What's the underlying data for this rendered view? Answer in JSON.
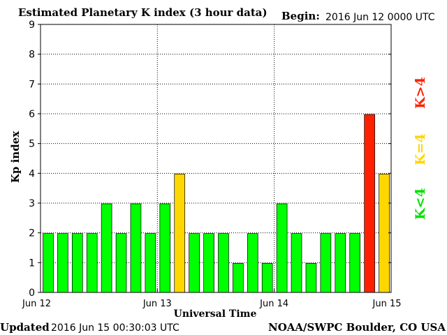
{
  "header": {
    "title": "Estimated Planetary K index (3 hour data)",
    "begin_label": "Begin:",
    "begin_value": "2016 Jun 12 0000 UTC"
  },
  "footer": {
    "updated_label": "Updated",
    "updated_value": "2016 Jun 15 00:30:03 UTC",
    "source": "NOAA/SWPC Boulder, CO USA"
  },
  "legend": {
    "high": "K>4",
    "equal": "K=4",
    "low": "K<4"
  },
  "colors": {
    "low": "#00ff00",
    "equal": "#ffd700",
    "high": "#ff2000",
    "axis": "#000000",
    "grid": "#000000"
  },
  "chart_data": {
    "type": "bar",
    "title": "Estimated Planetary K index (3 hour data)",
    "xlabel": "Universal Time",
    "ylabel": "Kp index",
    "ylim": [
      0,
      9
    ],
    "yticks": [
      "0",
      "1",
      "2",
      "3",
      "4",
      "5",
      "6",
      "7",
      "8",
      "9"
    ],
    "xticks": [
      "Jun 12",
      "Jun 13",
      "Jun 14",
      "Jun 15"
    ],
    "interval_hours": 3,
    "grid": "dotted at day boundaries and each integer Kp",
    "values": [
      2,
      2,
      2,
      2,
      3,
      2,
      3,
      2,
      3,
      4,
      2,
      2,
      2,
      1,
      2,
      1,
      3,
      2,
      1,
      2,
      2,
      2,
      6,
      4
    ],
    "color_rule": "green K<4, yellow K=4, red K>4"
  }
}
